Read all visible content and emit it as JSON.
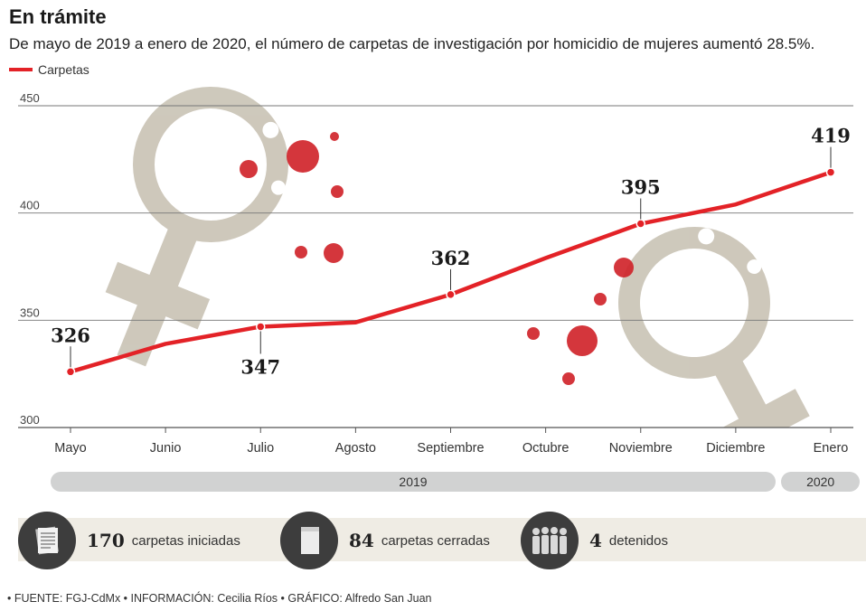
{
  "header": {
    "title": "En trámite",
    "subtitle": "De mayo de 2019 a enero de 2020, el número de carpetas de investigación por homicidio de mujeres aumentó 28.5%."
  },
  "legend": {
    "label": "Carpetas",
    "color": "#e32227"
  },
  "chart_data": {
    "type": "line",
    "categories": [
      "Mayo",
      "Junio",
      "Julio",
      "Agosto",
      "Septiembre",
      "Octubre",
      "Noviembre",
      "Diciembre",
      "Enero"
    ],
    "series": [
      {
        "name": "Carpetas",
        "values": [
          326,
          339,
          347,
          349,
          362,
          379,
          395,
          404,
          419
        ]
      }
    ],
    "data_labels": [
      {
        "index": 0,
        "text": "326"
      },
      {
        "index": 2,
        "text": "347"
      },
      {
        "index": 4,
        "text": "362"
      },
      {
        "index": 6,
        "text": "395"
      },
      {
        "index": 8,
        "text": "419"
      }
    ],
    "y_ticks": [
      300,
      350,
      400,
      450
    ],
    "ylim": [
      300,
      450
    ],
    "grid": true,
    "line_color": "#e32227",
    "decoration_color": "#c6bfb0",
    "dot_color": "#cf2027",
    "years": [
      {
        "label": "2019",
        "months": 8
      },
      {
        "label": "2020",
        "months": 1
      }
    ]
  },
  "stats": [
    {
      "value": "170",
      "label": "carpetas iniciadas",
      "icon": "documents-icon"
    },
    {
      "value": "84",
      "label": "carpetas cerradas",
      "icon": "folder-icon"
    },
    {
      "value": "4",
      "label": "detenidos",
      "icon": "people-icon"
    }
  ],
  "footer": {
    "text": "• FUENTE: FGJ-CdMx • INFORMACIÓN: Cecilia Ríos • GRÁFICO: Alfredo San Juan"
  }
}
